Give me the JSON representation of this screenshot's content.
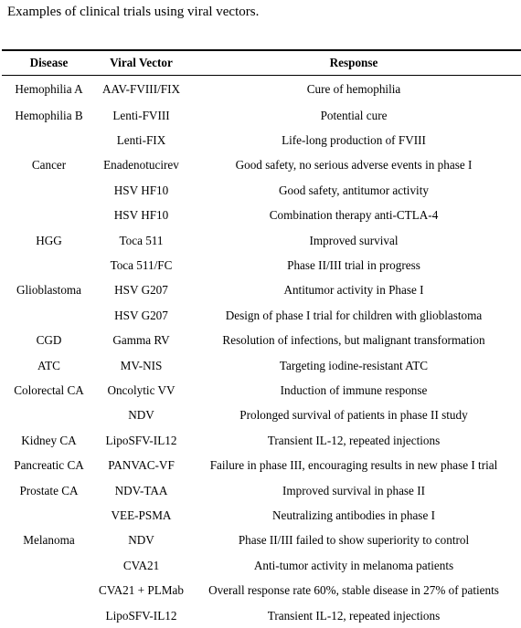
{
  "caption": "Examples of clinical trials using viral vectors.",
  "table": {
    "headers": [
      "Disease",
      "Viral Vector",
      "Response"
    ],
    "rows": [
      [
        "Hemophilia A",
        "AAV-FVIII/FIX",
        "Cure of hemophilia"
      ],
      [
        "Hemophilia B",
        "Lenti-FVIII",
        "Potential cure"
      ],
      [
        "",
        "Lenti-FIX",
        "Life-long production of FVIII"
      ],
      [
        "Cancer",
        "Enadenotucirev",
        "Good safety, no serious adverse events in phase I"
      ],
      [
        "",
        "HSV HF10",
        "Good safety, antitumor activity"
      ],
      [
        "",
        "HSV HF10",
        "Combination therapy anti-CTLA-4"
      ],
      [
        "HGG",
        "Toca 511",
        "Improved survival"
      ],
      [
        "",
        "Toca 511/FC",
        "Phase II/III trial in progress"
      ],
      [
        "Glioblastoma",
        "HSV G207",
        "Antitumor activity in Phase I"
      ],
      [
        "",
        "HSV G207",
        "Design of phase I trial for children with glioblastoma"
      ],
      [
        "CGD",
        "Gamma RV",
        "Resolution of infections, but malignant transformation"
      ],
      [
        "ATC",
        "MV-NIS",
        "Targeting iodine-resistant ATC"
      ],
      [
        "Colorectal CA",
        "Oncolytic VV",
        "Induction of immune response"
      ],
      [
        "",
        "NDV",
        "Prolonged survival of patients in phase II study"
      ],
      [
        "Kidney CA",
        "LipoSFV-IL12",
        "Transient IL-12, repeated injections"
      ],
      [
        "Pancreatic CA",
        "PANVAC-VF",
        "Failure in phase III, encouraging results in new phase I trial"
      ],
      [
        "Prostate CA",
        "NDV-TAA",
        "Improved survival in phase II"
      ],
      [
        "",
        "VEE-PSMA",
        "Neutralizing antibodies in phase I"
      ],
      [
        "Melanoma",
        "NDV",
        "Phase II/III failed to show superiority to control"
      ],
      [
        "",
        "CVA21",
        "Anti-tumor activity in melanoma patients"
      ],
      [
        "",
        "CVA21 + PLMab",
        "Overall response rate 60%, stable disease in 27% of patients"
      ],
      [
        "",
        "LipoSFV-IL12",
        "Transient IL-12, repeated injections"
      ]
    ]
  }
}
